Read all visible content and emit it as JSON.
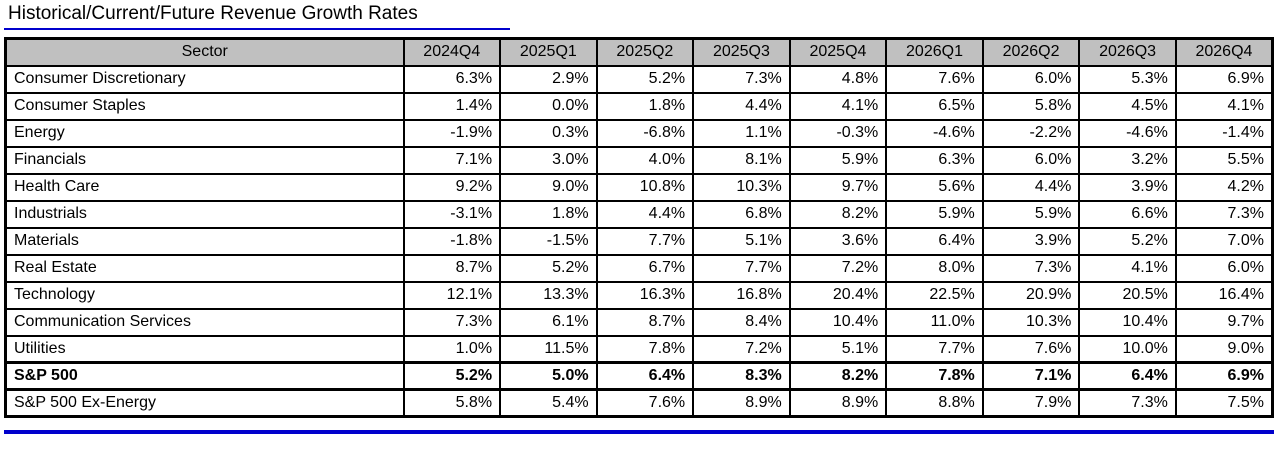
{
  "title": "Historical/Current/Future Revenue Growth Rates",
  "colors": {
    "accent_blue": "#0000cc",
    "header_bg": "#c0c0c0",
    "border": "#000000"
  },
  "chart_data": {
    "type": "table",
    "title": "Historical/Current/Future Revenue Growth Rates",
    "columns": [
      "Sector",
      "2024Q4",
      "2025Q1",
      "2025Q2",
      "2025Q3",
      "2025Q4",
      "2026Q1",
      "2026Q2",
      "2026Q3",
      "2026Q4"
    ],
    "rows": [
      {
        "sector": "Consumer Discretionary",
        "values": [
          "6.3%",
          "2.9%",
          "5.2%",
          "7.3%",
          "4.8%",
          "7.6%",
          "6.0%",
          "5.3%",
          "6.9%"
        ],
        "bold": false
      },
      {
        "sector": "Consumer Staples",
        "values": [
          "1.4%",
          "0.0%",
          "1.8%",
          "4.4%",
          "4.1%",
          "6.5%",
          "5.8%",
          "4.5%",
          "4.1%"
        ],
        "bold": false
      },
      {
        "sector": "Energy",
        "values": [
          "-1.9%",
          "0.3%",
          "-6.8%",
          "1.1%",
          "-0.3%",
          "-4.6%",
          "-2.2%",
          "-4.6%",
          "-1.4%"
        ],
        "bold": false
      },
      {
        "sector": "Financials",
        "values": [
          "7.1%",
          "3.0%",
          "4.0%",
          "8.1%",
          "5.9%",
          "6.3%",
          "6.0%",
          "3.2%",
          "5.5%"
        ],
        "bold": false
      },
      {
        "sector": "Health Care",
        "values": [
          "9.2%",
          "9.0%",
          "10.8%",
          "10.3%",
          "9.7%",
          "5.6%",
          "4.4%",
          "3.9%",
          "4.2%"
        ],
        "bold": false
      },
      {
        "sector": "Industrials",
        "values": [
          "-3.1%",
          "1.8%",
          "4.4%",
          "6.8%",
          "8.2%",
          "5.9%",
          "5.9%",
          "6.6%",
          "7.3%"
        ],
        "bold": false
      },
      {
        "sector": "Materials",
        "values": [
          "-1.8%",
          "-1.5%",
          "7.7%",
          "5.1%",
          "3.6%",
          "6.4%",
          "3.9%",
          "5.2%",
          "7.0%"
        ],
        "bold": false
      },
      {
        "sector": "Real Estate",
        "values": [
          "8.7%",
          "5.2%",
          "6.7%",
          "7.7%",
          "7.2%",
          "8.0%",
          "7.3%",
          "4.1%",
          "6.0%"
        ],
        "bold": false
      },
      {
        "sector": "Technology",
        "values": [
          "12.1%",
          "13.3%",
          "16.3%",
          "16.8%",
          "20.4%",
          "22.5%",
          "20.9%",
          "20.5%",
          "16.4%"
        ],
        "bold": false
      },
      {
        "sector": "Communication Services",
        "values": [
          "7.3%",
          "6.1%",
          "8.7%",
          "8.4%",
          "10.4%",
          "11.0%",
          "10.3%",
          "10.4%",
          "9.7%"
        ],
        "bold": false
      },
      {
        "sector": "Utilities",
        "values": [
          "1.0%",
          "11.5%",
          "7.8%",
          "7.2%",
          "5.1%",
          "7.7%",
          "7.6%",
          "10.0%",
          "9.0%"
        ],
        "bold": false
      },
      {
        "sector": "S&P 500",
        "values": [
          "5.2%",
          "5.0%",
          "6.4%",
          "8.3%",
          "8.2%",
          "7.8%",
          "7.1%",
          "6.4%",
          "6.9%"
        ],
        "bold": true
      },
      {
        "sector": "S&P 500 Ex-Energy",
        "values": [
          "5.8%",
          "5.4%",
          "7.6%",
          "8.9%",
          "8.9%",
          "8.8%",
          "7.9%",
          "7.3%",
          "7.5%"
        ],
        "bold": false
      }
    ]
  }
}
